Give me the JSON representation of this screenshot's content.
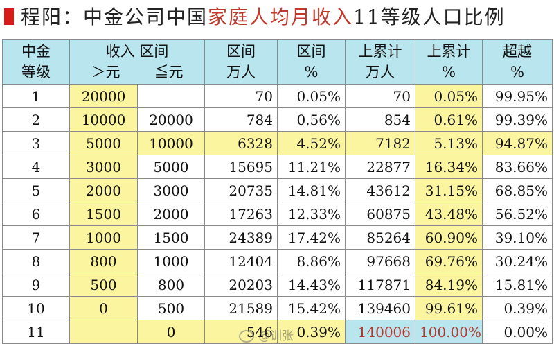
{
  "title": {
    "part1": "程阳：中金公司中国",
    "part2": "家庭人均月收入",
    "part3": "11等级人口比例"
  },
  "headers": {
    "level": [
      "中金",
      "等级"
    ],
    "income": [
      "收入 区间",
      "＞元",
      "≦元"
    ],
    "range_pop": [
      "区间",
      "万人"
    ],
    "range_pct": [
      "区间",
      "%"
    ],
    "cum_pop": [
      "上累计",
      "万人"
    ],
    "cum_pct": [
      "上累计",
      "%"
    ],
    "exceed": [
      "超越",
      "%"
    ]
  },
  "rows": [
    [
      "1",
      "20000",
      "",
      "70",
      "0.05%",
      "70",
      "0.05%",
      "99.95%"
    ],
    [
      "2",
      "10000",
      "20000",
      "784",
      "0.56%",
      "854",
      "0.61%",
      "99.39%"
    ],
    [
      "3",
      "5000",
      "10000",
      "6328",
      "4.52%",
      "7182",
      "5.13%",
      "94.87%"
    ],
    [
      "4",
      "3000",
      "5000",
      "15695",
      "11.21%",
      "22877",
      "16.34%",
      "83.66%"
    ],
    [
      "5",
      "2000",
      "3000",
      "20735",
      "14.81%",
      "43612",
      "31.15%",
      "68.85%"
    ],
    [
      "6",
      "1500",
      "2000",
      "17263",
      "12.33%",
      "60875",
      "43.48%",
      "56.52%"
    ],
    [
      "7",
      "1000",
      "1500",
      "24389",
      "17.42%",
      "85264",
      "60.90%",
      "39.10%"
    ],
    [
      "8",
      "800",
      "1000",
      "12404",
      "8.86%",
      "97668",
      "69.76%",
      "30.24%"
    ],
    [
      "9",
      "500",
      "800",
      "20203",
      "14.43%",
      "117871",
      "84.19%",
      "15.81%"
    ],
    [
      "10",
      "0",
      "500",
      "21589",
      "15.42%",
      "139460",
      "99.61%",
      "0.39%"
    ],
    [
      "11",
      "",
      "0",
      "546",
      "0.39%",
      "140006",
      "100.00%",
      "0.00%"
    ]
  ],
  "watermark": "@训张"
}
